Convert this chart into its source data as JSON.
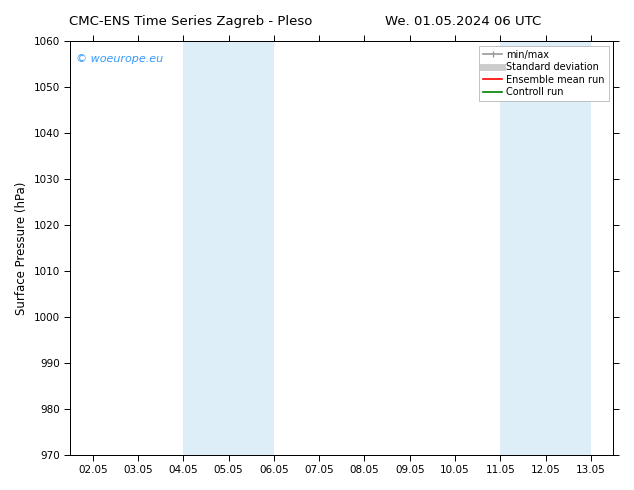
{
  "title_left": "CMC-ENS Time Series Zagreb - Pleso",
  "title_right": "We. 01.05.2024 06 UTC",
  "ylabel": "Surface Pressure (hPa)",
  "ylim": [
    970,
    1060
  ],
  "yticks": [
    970,
    980,
    990,
    1000,
    1010,
    1020,
    1030,
    1040,
    1050,
    1060
  ],
  "xtick_labels": [
    "02.05",
    "03.05",
    "04.05",
    "05.05",
    "06.05",
    "07.05",
    "08.05",
    "09.05",
    "10.05",
    "11.05",
    "12.05",
    "13.05"
  ],
  "xtick_positions": [
    0,
    1,
    2,
    3,
    4,
    5,
    6,
    7,
    8,
    9,
    10,
    11
  ],
  "xlim": [
    -0.5,
    11.5
  ],
  "shaded_bands": [
    {
      "xmin": 2.0,
      "xmax": 3.5,
      "color": "#ddeef8"
    },
    {
      "xmin": 9.0,
      "xmax": 10.5,
      "color": "#ddeef8"
    }
  ],
  "watermark_text": "© woeurope.eu",
  "watermark_color": "#3399ff",
  "legend_entries": [
    {
      "label": "min/max",
      "color": "#aaaaaa",
      "lw": 1.2
    },
    {
      "label": "Standard deviation",
      "color": "#cccccc",
      "lw": 5
    },
    {
      "label": "Ensemble mean run",
      "color": "red",
      "lw": 1.2
    },
    {
      "label": "Controll run",
      "color": "green",
      "lw": 1.2
    }
  ],
  "bg_color": "#ffffff",
  "title_fontsize": 9.5,
  "tick_fontsize": 7.5,
  "label_fontsize": 8.5,
  "watermark_fontsize": 8,
  "legend_fontsize": 7
}
